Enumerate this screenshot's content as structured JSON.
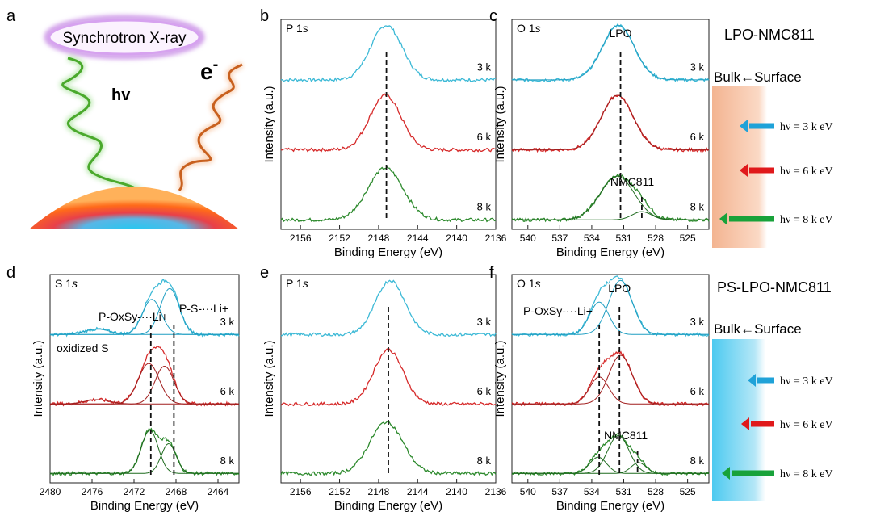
{
  "figure": {
    "panel_labels": [
      "a",
      "b",
      "c",
      "d",
      "e",
      "f"
    ],
    "panel_a": {
      "source_label": "Synchrotron X-ray",
      "photon_label": "hv",
      "electron_label": "e",
      "electron_superscript": "-"
    },
    "samples": {
      "top": "LPO-NMC811",
      "bottom": "PS-LPO-NMC811"
    },
    "depth_legend": {
      "label": "Bulk←Surface",
      "arrows": [
        {
          "text": "hν = 3 k eV",
          "color": "#1fa2d8"
        },
        {
          "text": "hν = 6 k eV",
          "color": "#e0191b"
        },
        {
          "text": "hν = 8 k eV",
          "color": "#18a23a"
        }
      ],
      "top_color": "#f7c8a8",
      "bottom_color": "#7fd3ef"
    },
    "annotations": {
      "lpo": "LPO",
      "nmc": "NMC811",
      "oxidized": "oxidized S"
    },
    "energies": [
      "3 k",
      "6 k",
      "8 k"
    ],
    "series_colors": [
      "#3cb9d6",
      "#d62a2a",
      "#2d8a2d"
    ]
  },
  "chart_data": [
    {
      "panel": "b",
      "type": "line",
      "element_label": "P 1s",
      "xlabel": "Binding Energy (eV)",
      "ylabel": "Intensity (a.u.)",
      "xlim": [
        2158,
        2136
      ],
      "xticks": [
        2156,
        2152,
        2148,
        2144,
        2140,
        2136
      ],
      "dashed_lines": [
        2147.2
      ],
      "series": [
        {
          "name": "3 k",
          "peaks": [
            {
              "center": 2147.2,
              "width": 1.6,
              "height": 1.0
            }
          ],
          "baseline": 0.02
        },
        {
          "name": "6 k",
          "peaks": [
            {
              "center": 2147.3,
              "width": 1.6,
              "height": 1.0
            }
          ],
          "baseline": 0.02
        },
        {
          "name": "8 k",
          "peaks": [
            {
              "center": 2147.3,
              "width": 1.8,
              "height": 0.95
            }
          ],
          "baseline": 0.02
        }
      ]
    },
    {
      "panel": "c",
      "type": "line",
      "element_label": "O 1s",
      "xlabel": "Binding Energy (eV)",
      "ylabel": "Intensity (a.u.)",
      "xlim": [
        541.5,
        523
      ],
      "xticks": [
        540,
        537,
        534,
        531,
        528,
        525
      ],
      "dashed_lines": [
        531.3,
        529.3
      ],
      "series": [
        {
          "name": "3 k",
          "peaks": [
            {
              "center": 531.5,
              "width": 1.5,
              "height": 1.0
            }
          ],
          "baseline": 0.02
        },
        {
          "name": "6 k",
          "peaks": [
            {
              "center": 531.6,
              "width": 1.5,
              "height": 1.0
            }
          ],
          "baseline": 0.02
        },
        {
          "name": "8 k",
          "peaks": [
            {
              "center": 531.6,
              "width": 1.6,
              "height": 0.8
            },
            {
              "center": 529.3,
              "width": 0.9,
              "height": 0.15
            }
          ],
          "baseline": 0.02
        }
      ]
    },
    {
      "panel": "d",
      "type": "line",
      "element_label": "S 1s",
      "xlabel": "Binding Energy (eV)",
      "ylabel": "Intensity (a.u.)",
      "xlim": [
        2480,
        2462
      ],
      "xticks": [
        2480,
        2476,
        2472,
        2468,
        2464
      ],
      "dashed_lines": [
        2470.4,
        2468.2
      ],
      "annotations": [
        "P-OxSy-···Li+",
        "P-S-···Li+",
        "oxidized S"
      ],
      "series": [
        {
          "name": "3 k",
          "peaks": [
            {
              "center": 2470.3,
              "width": 0.9,
              "height": 0.65
            },
            {
              "center": 2468.6,
              "width": 0.9,
              "height": 0.85
            },
            {
              "center": 2475.5,
              "width": 1.2,
              "height": 0.1
            }
          ],
          "baseline": 0.02
        },
        {
          "name": "6 k",
          "peaks": [
            {
              "center": 2470.6,
              "width": 1.0,
              "height": 0.75
            },
            {
              "center": 2469.1,
              "width": 0.9,
              "height": 0.7
            },
            {
              "center": 2475.5,
              "width": 1.2,
              "height": 0.08
            }
          ],
          "baseline": 0.02
        },
        {
          "name": "8 k",
          "peaks": [
            {
              "center": 2470.5,
              "width": 0.8,
              "height": 0.8
            },
            {
              "center": 2468.7,
              "width": 0.7,
              "height": 0.55
            }
          ],
          "baseline": 0.02
        }
      ]
    },
    {
      "panel": "e",
      "type": "line",
      "element_label": "P 1s",
      "xlabel": "Binding Energy (eV)",
      "ylabel": "Intensity (a.u.)",
      "xlim": [
        2158,
        2136
      ],
      "xticks": [
        2156,
        2152,
        2148,
        2144,
        2140,
        2136
      ],
      "dashed_lines": [
        2147.0
      ],
      "series": [
        {
          "name": "3 k",
          "peaks": [
            {
              "center": 2146.8,
              "width": 1.5,
              "height": 1.0
            }
          ],
          "baseline": 0.02
        },
        {
          "name": "6 k",
          "peaks": [
            {
              "center": 2147.0,
              "width": 1.5,
              "height": 1.0
            }
          ],
          "baseline": 0.02
        },
        {
          "name": "8 k",
          "peaks": [
            {
              "center": 2147.2,
              "width": 1.7,
              "height": 0.95
            }
          ],
          "baseline": 0.02
        }
      ]
    },
    {
      "panel": "f",
      "type": "line",
      "element_label": "O 1s",
      "xlabel": "Binding Energy (eV)",
      "ylabel": "Intensity (a.u.)",
      "xlim": [
        541.5,
        523
      ],
      "xticks": [
        540,
        537,
        534,
        531,
        528,
        525
      ],
      "dashed_lines": [
        533.3,
        531.4,
        529.7
      ],
      "annotations": [
        "P-OxSy-···Li+"
      ],
      "series": [
        {
          "name": "3 k",
          "peaks": [
            {
              "center": 533.3,
              "width": 0.9,
              "height": 0.6
            },
            {
              "center": 531.3,
              "width": 1.1,
              "height": 1.0
            }
          ],
          "baseline": 0.02
        },
        {
          "name": "6 k",
          "peaks": [
            {
              "center": 533.3,
              "width": 0.9,
              "height": 0.5
            },
            {
              "center": 531.3,
              "width": 1.1,
              "height": 0.9
            }
          ],
          "baseline": 0.02
        },
        {
          "name": "8 k",
          "peaks": [
            {
              "center": 533.4,
              "width": 0.8,
              "height": 0.3
            },
            {
              "center": 531.5,
              "width": 1.0,
              "height": 0.7
            },
            {
              "center": 529.6,
              "width": 0.7,
              "height": 0.2
            }
          ],
          "baseline": 0.02
        }
      ]
    }
  ]
}
